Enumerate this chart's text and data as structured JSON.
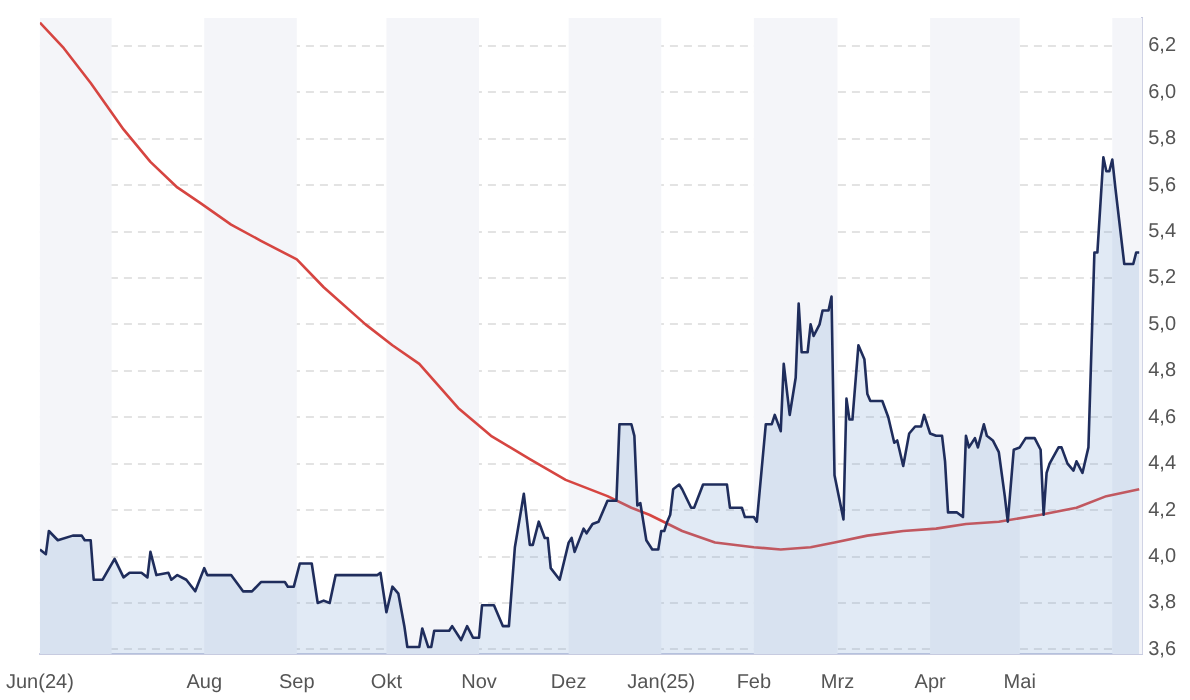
{
  "chart_data": {
    "type": "line",
    "series": [
      {
        "type": "area",
        "color": "#1f2d5c",
        "x": [
          "2024-06-07",
          "2024-06-09",
          "2024-06-10",
          "2024-06-13",
          "2024-06-18",
          "2024-06-21",
          "2024-06-22",
          "2024-06-24",
          "2024-06-25",
          "2024-06-28",
          "2024-07-02",
          "2024-07-05",
          "2024-07-07",
          "2024-07-11",
          "2024-07-13",
          "2024-07-14",
          "2024-07-16",
          "2024-07-20",
          "2024-07-21",
          "2024-07-23",
          "2024-07-26",
          "2024-07-29",
          "2024-08-01",
          "2024-08-02",
          "2024-08-10",
          "2024-08-14",
          "2024-08-17",
          "2024-08-20",
          "2024-08-28",
          "2024-08-29",
          "2024-08-31",
          "2024-09-02",
          "2024-09-06",
          "2024-09-08",
          "2024-09-10",
          "2024-09-12",
          "2024-09-14",
          "2024-09-28",
          "2024-09-29",
          "2024-10-01",
          "2024-10-03",
          "2024-10-05",
          "2024-10-07",
          "2024-10-08",
          "2024-10-12",
          "2024-10-13",
          "2024-10-15",
          "2024-10-16",
          "2024-10-17",
          "2024-10-22",
          "2024-10-23",
          "2024-10-26",
          "2024-10-28",
          "2024-10-30",
          "2024-11-01",
          "2024-11-02",
          "2024-11-06",
          "2024-11-09",
          "2024-11-11",
          "2024-11-13",
          "2024-11-16",
          "2024-11-18",
          "2024-11-19",
          "2024-11-21",
          "2024-11-23",
          "2024-11-24",
          "2024-11-25",
          "2024-11-28",
          "2024-12-01",
          "2024-12-02",
          "2024-12-03",
          "2024-12-06",
          "2024-12-07",
          "2024-12-09",
          "2024-12-11",
          "2024-12-14",
          "2024-12-17",
          "2024-12-18",
          "2024-12-21",
          "2024-12-22",
          "2024-12-23",
          "2024-12-24",
          "2024-12-25",
          "2024-12-27",
          "2024-12-29",
          "2024-12-31",
          "2025-01-01",
          "2025-01-02",
          "2025-01-03",
          "2025-01-04",
          "2025-01-05",
          "2025-01-07",
          "2025-01-08",
          "2025-01-11",
          "2025-01-12",
          "2025-01-15",
          "2025-01-23",
          "2025-01-24",
          "2025-01-28",
          "2025-01-29",
          "2025-02-01",
          "2025-02-02",
          "2025-02-05",
          "2025-02-07",
          "2025-02-08",
          "2025-02-10",
          "2025-02-11",
          "2025-02-13",
          "2025-02-15",
          "2025-02-16",
          "2025-02-17",
          "2025-02-19",
          "2025-02-20",
          "2025-02-21",
          "2025-02-23",
          "2025-02-24",
          "2025-02-26",
          "2025-02-27",
          "2025-02-28",
          "2025-03-03",
          "2025-03-04",
          "2025-03-05",
          "2025-03-06",
          "2025-03-08",
          "2025-03-10",
          "2025-03-11",
          "2025-03-12",
          "2025-03-16",
          "2025-03-18",
          "2025-03-20",
          "2025-03-21",
          "2025-03-23",
          "2025-03-25",
          "2025-03-27",
          "2025-03-29",
          "2025-03-30",
          "2025-04-01",
          "2025-04-03",
          "2025-04-05",
          "2025-04-06",
          "2025-04-07",
          "2025-04-10",
          "2025-04-12",
          "2025-04-13",
          "2025-04-14",
          "2025-04-16",
          "2025-04-17",
          "2025-04-19",
          "2025-04-20",
          "2025-04-22",
          "2025-04-24",
          "2025-04-26",
          "2025-04-27",
          "2025-04-29",
          "2025-05-01",
          "2025-05-03",
          "2025-05-06",
          "2025-05-08",
          "2025-05-09",
          "2025-05-10",
          "2025-05-11",
          "2025-05-14",
          "2025-05-15",
          "2025-05-17",
          "2025-05-19",
          "2025-05-20",
          "2025-05-22",
          "2025-05-24",
          "2025-05-26",
          "2025-05-27",
          "2025-05-29",
          "2025-05-30",
          "2025-05-31",
          "2025-06-01",
          "2025-06-02",
          "2025-06-05",
          "2025-06-08",
          "2025-06-09",
          "2025-06-10"
        ],
        "values": [
          4.03,
          4.01,
          4.11,
          4.07,
          4.09,
          4.09,
          4.07,
          4.07,
          3.9,
          3.9,
          3.99,
          3.91,
          3.93,
          3.93,
          3.91,
          4.02,
          3.92,
          3.93,
          3.9,
          3.92,
          3.9,
          3.85,
          3.95,
          3.92,
          3.92,
          3.85,
          3.85,
          3.89,
          3.89,
          3.87,
          3.87,
          3.97,
          3.97,
          3.8,
          3.81,
          3.8,
          3.92,
          3.92,
          3.93,
          3.76,
          3.87,
          3.84,
          3.7,
          3.61,
          3.61,
          3.69,
          3.61,
          3.61,
          3.68,
          3.68,
          3.7,
          3.64,
          3.7,
          3.65,
          3.65,
          3.79,
          3.79,
          3.7,
          3.7,
          4.04,
          4.27,
          4.05,
          4.05,
          4.15,
          4.08,
          4.08,
          3.95,
          3.9,
          4.06,
          4.08,
          4.02,
          4.12,
          4.1,
          4.14,
          4.15,
          4.24,
          4.24,
          4.57,
          4.57,
          4.57,
          4.52,
          4.22,
          4.23,
          4.07,
          4.03,
          4.03,
          4.11,
          4.11,
          4.15,
          4.18,
          4.29,
          4.31,
          4.29,
          4.21,
          4.21,
          4.31,
          4.31,
          4.21,
          4.21,
          4.17,
          4.17,
          4.15,
          4.57,
          4.57,
          4.61,
          4.54,
          4.83,
          4.61,
          4.77,
          5.09,
          4.88,
          4.88,
          5.0,
          4.95,
          5.0,
          5.06,
          5.06,
          5.12,
          4.35,
          4.16,
          4.68,
          4.59,
          4.59,
          4.91,
          4.85,
          4.7,
          4.67,
          4.67,
          4.6,
          4.49,
          4.5,
          4.39,
          4.53,
          4.56,
          4.56,
          4.61,
          4.53,
          4.52,
          4.52,
          4.41,
          4.19,
          4.19,
          4.17,
          4.52,
          4.47,
          4.51,
          4.47,
          4.57,
          4.52,
          4.5,
          4.45,
          4.26,
          4.15,
          4.46,
          4.47,
          4.51,
          4.51,
          4.46,
          4.18,
          4.36,
          4.4,
          4.47,
          4.47,
          4.4,
          4.37,
          4.41,
          4.36,
          4.47,
          5.31,
          5.31,
          5.72,
          5.66,
          5.66,
          5.71,
          5.59,
          5.26,
          5.26,
          5.31,
          5.31
        ]
      },
      {
        "color": "#d64541",
        "x": [
          "2024-06-07",
          "2024-06-15",
          "2024-06-24",
          "2024-07-05",
          "2024-07-14",
          "2024-07-23",
          "2024-07-31",
          "2024-08-10",
          "2024-08-20",
          "2024-09-01",
          "2024-09-10",
          "2024-09-24",
          "2024-10-03",
          "2024-10-12",
          "2024-10-25",
          "2024-11-05",
          "2024-11-18",
          "2024-11-30",
          "2024-12-14",
          "2024-12-22",
          "2024-12-28",
          "2025-01-08",
          "2025-01-19",
          "2025-02-01",
          "2025-02-10",
          "2025-02-20",
          "2025-02-28",
          "2025-03-11",
          "2025-03-23",
          "2025-04-03",
          "2025-04-13",
          "2025-04-24",
          "2025-05-08",
          "2025-05-20",
          "2025-05-30",
          "2025-06-10"
        ],
        "values": [
          6.3,
          6.19,
          6.04,
          5.84,
          5.7,
          5.59,
          5.52,
          5.43,
          5.36,
          5.28,
          5.16,
          5.0,
          4.91,
          4.83,
          4.64,
          4.52,
          4.42,
          4.33,
          4.26,
          4.21,
          4.18,
          4.11,
          4.06,
          4.04,
          4.03,
          4.04,
          4.06,
          4.09,
          4.11,
          4.12,
          4.14,
          4.15,
          4.18,
          4.21,
          4.26,
          4.29
        ]
      }
    ],
    "xlim": [
      "2024-06-07",
      "2025-06-11"
    ],
    "xticks": [
      {
        "value": "2024-06-07",
        "label": "Jun(24)"
      },
      {
        "value": "2024-08-01",
        "label": "Aug"
      },
      {
        "value": "2024-09-01",
        "label": "Sep"
      },
      {
        "value": "2024-10-01",
        "label": "Okt"
      },
      {
        "value": "2024-11-01",
        "label": "Nov"
      },
      {
        "value": "2024-12-01",
        "label": "Dez"
      },
      {
        "value": "2025-01-01",
        "label": "Jan(25)"
      },
      {
        "value": "2025-02-01",
        "label": "Feb"
      },
      {
        "value": "2025-03-01",
        "label": "Mrz"
      },
      {
        "value": "2025-04-01",
        "label": "Apr"
      },
      {
        "value": "2025-05-01",
        "label": "Mai"
      }
    ],
    "ylim": [
      3.58,
      6.32
    ],
    "yticks": [
      {
        "value": 3.6,
        "label": "3,6"
      },
      {
        "value": 3.8,
        "label": "3,8"
      },
      {
        "value": 4.0,
        "label": "4,0"
      },
      {
        "value": 4.2,
        "label": "4,2"
      },
      {
        "value": 4.4,
        "label": "4,4"
      },
      {
        "value": 4.6,
        "label": "4,6"
      },
      {
        "value": 4.8,
        "label": "4,8"
      },
      {
        "value": 5.0,
        "label": "5,0"
      },
      {
        "value": 5.2,
        "label": "5,2"
      },
      {
        "value": 5.4,
        "label": "5,4"
      },
      {
        "value": 5.6,
        "label": "5,6"
      },
      {
        "value": 5.8,
        "label": "5,8"
      },
      {
        "value": 6.0,
        "label": "6,0"
      },
      {
        "value": 6.2,
        "label": "6,2"
      }
    ],
    "bands": [
      {
        "axis": "x",
        "from": "2024-06-07",
        "to": "2024-07-01",
        "color": "#f4f5f9"
      },
      {
        "axis": "x",
        "from": "2024-08-01",
        "to": "2024-09-01",
        "color": "#f4f5f9"
      },
      {
        "axis": "x",
        "from": "2024-10-01",
        "to": "2024-11-01",
        "color": "#f4f5f9"
      },
      {
        "axis": "x",
        "from": "2024-12-01",
        "to": "2025-01-01",
        "color": "#f4f5f9"
      },
      {
        "axis": "x",
        "from": "2025-02-01",
        "to": "2025-03-01",
        "color": "#f4f5f9"
      },
      {
        "axis": "x",
        "from": "2025-04-01",
        "to": "2025-05-01",
        "color": "#f4f5f9"
      },
      {
        "axis": "x",
        "from": "2025-06-01",
        "to": "2025-06-11",
        "color": "#f4f5f9"
      }
    ],
    "grid": "y",
    "marker": "none",
    "line_style": "solid",
    "legend": false
  }
}
